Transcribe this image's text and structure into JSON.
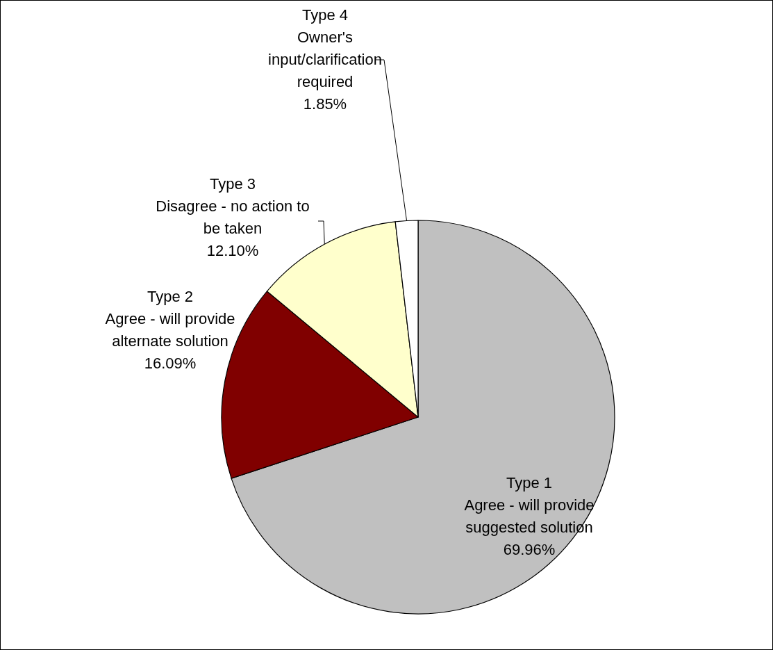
{
  "chart_data": {
    "type": "pie",
    "categories": [
      "Type 1\nAgree - will provide\nsuggested solution",
      "Type 2\nAgree - will provide\nalternate solution",
      "Type 3\nDisagree - no action to\nbe taken",
      "Type 4\nOwner's\ninput/clarification\nrequired"
    ],
    "values": [
      69.96,
      16.09,
      12.1,
      1.85
    ],
    "colors": [
      "#c0c0c0",
      "#800000",
      "#ffffcc",
      "#ffffff"
    ],
    "value_labels": [
      "69.96%",
      "16.09%",
      "12.10%",
      "1.85%"
    ]
  }
}
